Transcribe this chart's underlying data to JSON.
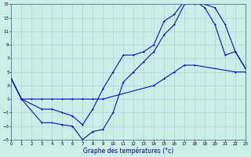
{
  "xlabel": "Graphe des températures (°c)",
  "bg_color": "#cceee8",
  "grid_color": "#aacccc",
  "line_color": "#0000bb",
  "xmin": 0,
  "xmax": 23,
  "ymin": -5,
  "ymax": 15,
  "yticks": [
    -5,
    -3,
    -1,
    1,
    3,
    5,
    7,
    9,
    11,
    13,
    15
  ],
  "xticks": [
    0,
    1,
    2,
    3,
    4,
    5,
    6,
    7,
    8,
    9,
    10,
    11,
    12,
    13,
    14,
    15,
    16,
    17,
    18,
    19,
    20,
    21,
    22,
    23
  ],
  "line1_x": [
    0,
    1,
    2,
    3,
    4,
    5,
    6,
    7,
    8,
    9,
    14,
    15,
    16,
    17,
    18,
    22,
    23
  ],
  "line1_y": [
    4,
    1,
    1,
    1,
    1,
    1,
    1,
    1,
    1,
    1,
    3,
    4,
    5,
    6,
    6,
    5,
    5
  ],
  "line2_x": [
    0,
    1,
    3,
    4,
    5,
    6,
    7,
    8,
    9,
    10,
    11,
    12,
    13,
    14,
    15,
    16,
    17,
    18,
    19,
    20,
    21,
    22,
    23
  ],
  "line2_y": [
    4,
    1,
    -2.5,
    -2.5,
    -2.8,
    -3.0,
    -5.0,
    -3.8,
    -3.5,
    -1.0,
    3.5,
    5.0,
    6.5,
    8.0,
    10.5,
    12.0,
    15.0,
    15.0,
    15.0,
    14.5,
    12.0,
    8.0,
    5.5
  ],
  "line3_x": [
    0,
    1,
    3,
    4,
    5,
    6,
    7,
    8,
    9,
    10,
    11,
    12,
    13,
    14,
    15,
    16,
    17,
    18,
    19,
    20,
    21,
    22,
    23
  ],
  "line3_y": [
    4,
    1,
    -0.5,
    -0.5,
    -1.0,
    -1.5,
    -2.8,
    -0.5,
    2.5,
    5.0,
    7.5,
    7.5,
    8.0,
    9.0,
    12.5,
    13.5,
    15.5,
    15.5,
    14.5,
    12.0,
    7.5,
    8.0,
    5.5
  ]
}
